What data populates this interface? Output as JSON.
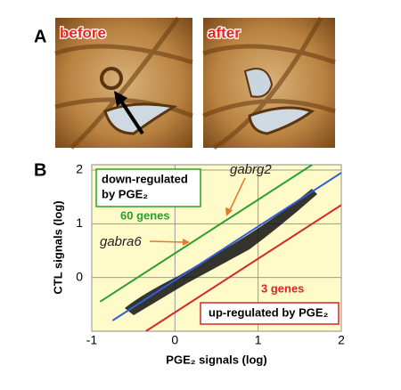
{
  "panel_a": {
    "label": "A",
    "images": [
      {
        "label": "before"
      },
      {
        "label": "after"
      }
    ]
  },
  "chart_data": {
    "type": "scatter",
    "panel_label": "B",
    "xlabel": "PGE₂ signals (log)",
    "ylabel": "CTL signals (log)",
    "xlim": [
      -1,
      2
    ],
    "ylim": [
      -1,
      2.1
    ],
    "xticks": [
      -1,
      0,
      1,
      2
    ],
    "yticks": [
      0,
      1,
      2
    ],
    "grid": true,
    "lines": [
      {
        "color": "#2f5fd8",
        "x": [
          -0.75,
          2
        ],
        "y": [
          -0.8,
          1.95
        ]
      },
      {
        "color": "#2ca02c",
        "x": [
          -0.9,
          1.65
        ],
        "y": [
          -0.45,
          2.1
        ]
      },
      {
        "color": "#d62728",
        "x": [
          -0.35,
          2
        ],
        "y": [
          -1,
          1.35
        ]
      }
    ],
    "annotations": {
      "down_box": [
        "down-regulated",
        "by PGE₂"
      ],
      "down_count": "60 genes",
      "up_box": "up-regulated by PGE₂",
      "up_count": "3 genes",
      "gene_1": "gabrg2",
      "gene_2": "gabra6"
    }
  }
}
